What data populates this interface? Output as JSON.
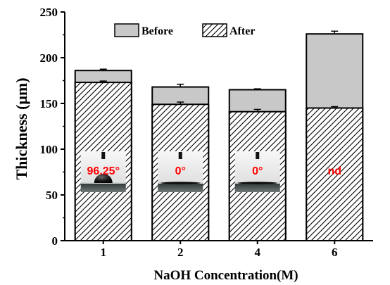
{
  "chart_data": {
    "type": "bar",
    "xlabel": "NaOH Concentration(M)",
    "ylabel": "Thickness (μm)",
    "ylim": [
      0,
      250
    ],
    "yticks": [
      0,
      50,
      100,
      150,
      200,
      250
    ],
    "categories": [
      "1",
      "2",
      "4",
      "6"
    ],
    "series": [
      {
        "name": "Before",
        "values": [
          186,
          168,
          165,
          226
        ],
        "errors": [
          1.5,
          3,
          1,
          3
        ],
        "style": "gray-fill",
        "color": "#c8c8c8"
      },
      {
        "name": "After",
        "values": [
          173,
          149,
          141,
          145
        ],
        "errors": [
          1.5,
          2.5,
          2.5,
          1.5
        ],
        "style": "hatched",
        "color": "#ffffff"
      }
    ],
    "legend_position": "top",
    "insets": [
      {
        "category": "1",
        "label": "96.25°",
        "droplet": true
      },
      {
        "category": "2",
        "label": "0°",
        "droplet": false
      },
      {
        "category": "4",
        "label": "0°",
        "droplet": false
      },
      {
        "category": "6",
        "label": "nd",
        "droplet": false
      }
    ]
  }
}
